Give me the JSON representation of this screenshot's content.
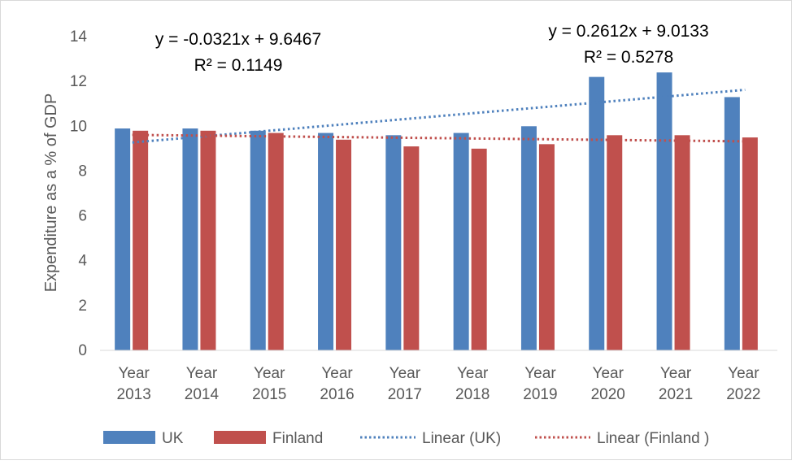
{
  "chart_data": {
    "type": "bar",
    "title": "",
    "xlabel": "",
    "ylabel": "Expenditure as a % of GDP",
    "ylim": [
      0,
      14
    ],
    "yticks": [
      0,
      2,
      4,
      6,
      8,
      10,
      12,
      14
    ],
    "grid": false,
    "legend_position": "bottom",
    "categories": [
      [
        "Year",
        "2013"
      ],
      [
        "Year",
        "2014"
      ],
      [
        "Year",
        "2015"
      ],
      [
        "Year",
        "2016"
      ],
      [
        "Year",
        "2017"
      ],
      [
        "Year",
        "2018"
      ],
      [
        "Year",
        "2019"
      ],
      [
        "Year",
        "2020"
      ],
      [
        "Year",
        "2021"
      ],
      [
        "Year",
        "2022"
      ]
    ],
    "series": [
      {
        "name": "UK",
        "color": "#4f81bd",
        "values": [
          9.9,
          9.9,
          9.8,
          9.7,
          9.6,
          9.7,
          10.0,
          12.2,
          12.4,
          11.3
        ]
      },
      {
        "name": "Finland",
        "color": "#c0504d",
        "values": [
          9.8,
          9.8,
          9.7,
          9.4,
          9.1,
          9.0,
          9.2,
          9.6,
          9.6,
          9.5
        ]
      }
    ],
    "trendlines": [
      {
        "name": "Linear (UK)",
        "series": "UK",
        "color": "#4f81bd",
        "slope": 0.2612,
        "intercept": 9.0133,
        "equation": "y = 0.2612x + 9.0133",
        "r2": "R² = 0.5278"
      },
      {
        "name": "Linear (Finland )",
        "series": "Finland",
        "color": "#c0504d",
        "slope": -0.0321,
        "intercept": 9.6467,
        "equation": "y = -0.0321x + 9.6467",
        "r2": "R² = 0.1149"
      }
    ]
  }
}
